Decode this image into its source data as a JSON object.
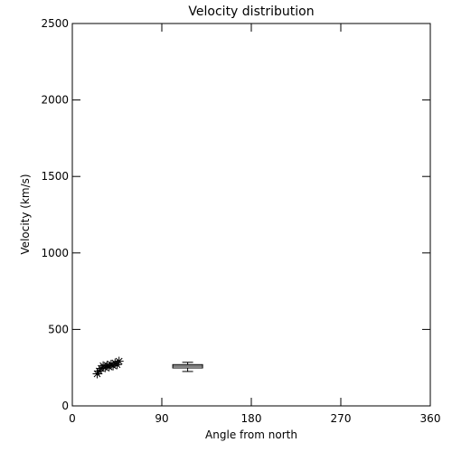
{
  "chart_data": {
    "type": "scatter",
    "title": "Velocity distribution",
    "xlabel": "Angle from north",
    "ylabel": "Velocity (km/s)",
    "xlim": [
      0,
      360
    ],
    "ylim": [
      0,
      2500
    ],
    "xticks": [
      "0",
      "90",
      "180",
      "270",
      "360"
    ],
    "xtick_values": [
      0,
      90,
      180,
      270,
      360
    ],
    "yticks": [
      "0",
      "500",
      "1000",
      "1500",
      "2000",
      "2500"
    ],
    "ytick_values": [
      0,
      500,
      1000,
      1500,
      2000,
      2500
    ],
    "grid": false,
    "points": [
      {
        "x": 25,
        "y": 210
      },
      {
        "x": 27,
        "y": 228
      },
      {
        "x": 29,
        "y": 245
      },
      {
        "x": 31,
        "y": 262
      },
      {
        "x": 33,
        "y": 250
      },
      {
        "x": 35,
        "y": 265
      },
      {
        "x": 37,
        "y": 255
      },
      {
        "x": 39,
        "y": 272
      },
      {
        "x": 41,
        "y": 262
      },
      {
        "x": 43,
        "y": 280
      },
      {
        "x": 45,
        "y": 270
      },
      {
        "x": 47,
        "y": 292
      }
    ],
    "boxplot": {
      "x_min": 101,
      "x_max": 131,
      "whisker_low": 225,
      "q1": 248,
      "median": 260,
      "q3": 270,
      "whisker_high": 285
    },
    "colors": {
      "foreground": "#000000",
      "background": "#ffffff"
    }
  }
}
